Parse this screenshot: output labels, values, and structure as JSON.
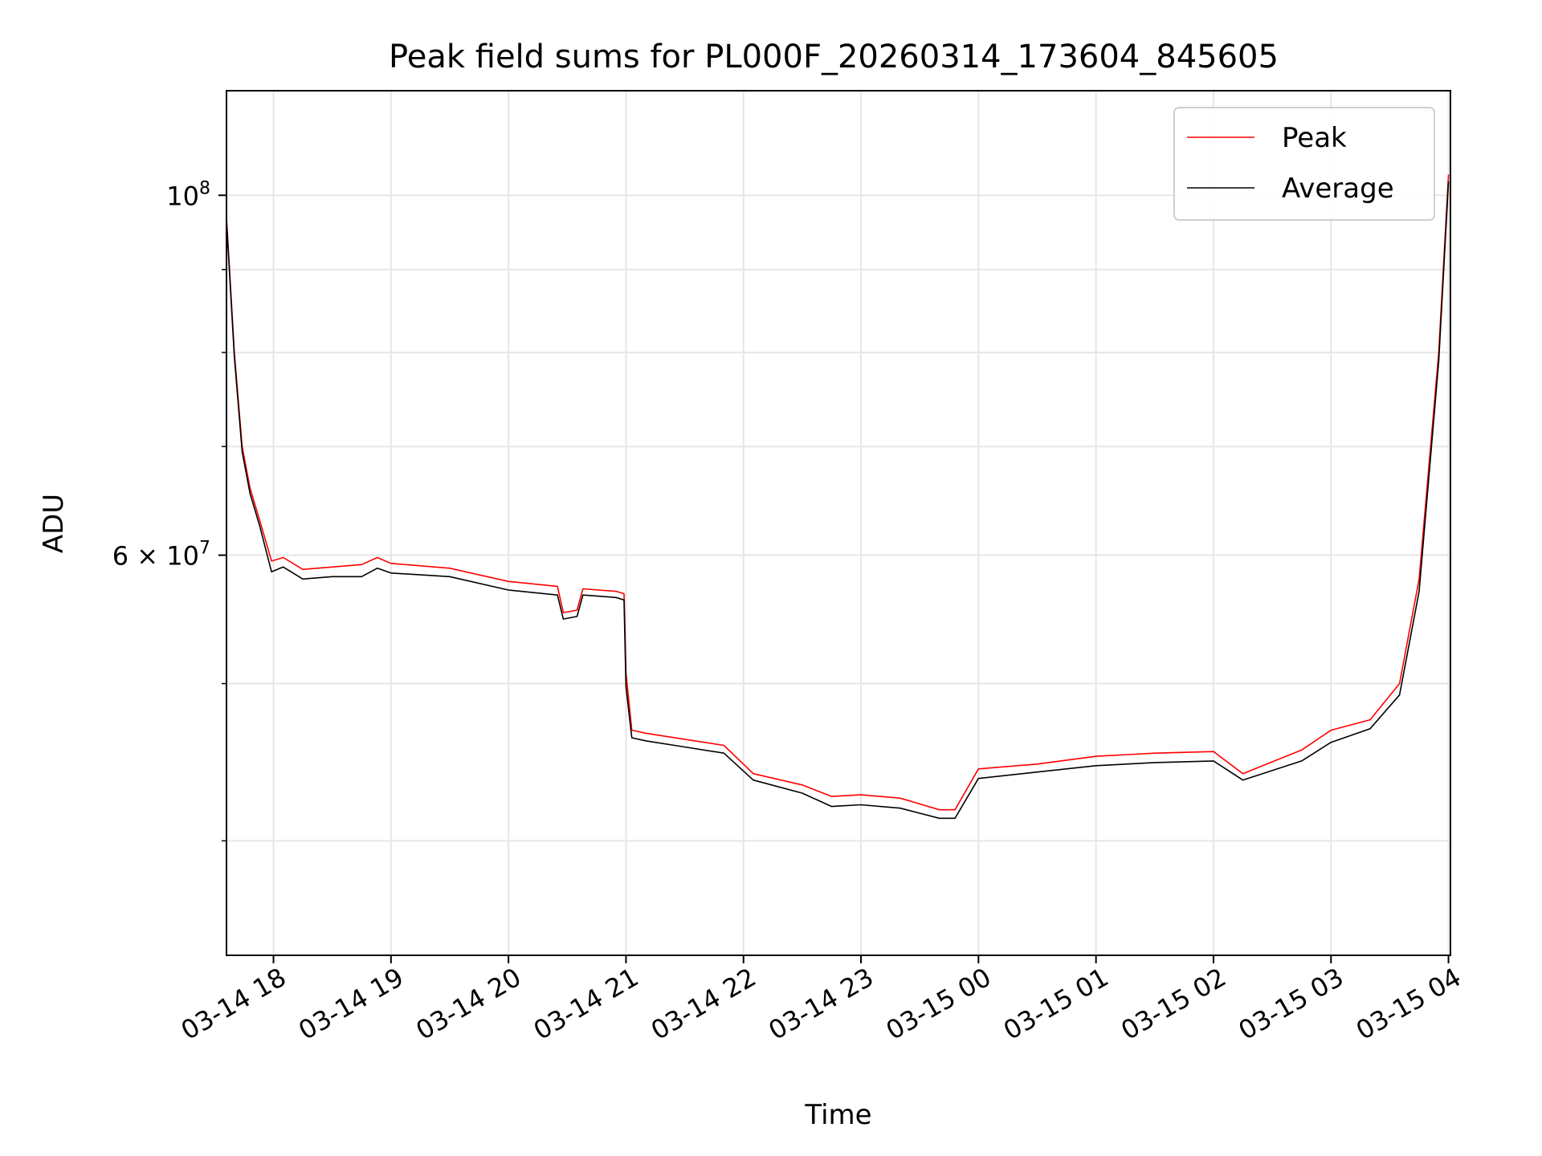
{
  "chart_data": {
    "type": "line",
    "title": "Peak field sums for PL000F_20260314_173604_845605",
    "xlabel": "Time",
    "ylabel": "ADU",
    "yscale": "log",
    "xlim": [
      "2026-03-14 17:36",
      "2026-03-15 04:01"
    ],
    "ylim": [
      34000000,
      116000000
    ],
    "x_ticks": [
      "2026-03-14 18:00",
      "2026-03-14 19:00",
      "2026-03-14 20:00",
      "2026-03-14 21:00",
      "2026-03-14 22:00",
      "2026-03-14 23:00",
      "2026-03-15 00:00",
      "2026-03-15 01:00",
      "2026-03-15 02:00",
      "2026-03-15 03:00",
      "2026-03-15 04:00"
    ],
    "x_tick_labels": [
      "03-14 18",
      "03-14 19",
      "03-14 20",
      "03-14 21",
      "03-14 22",
      "03-14 23",
      "03-15 00",
      "03-15 01",
      "03-15 02",
      "03-15 03",
      "03-15 04"
    ],
    "y_major_ticks": [
      {
        "value": 100000000,
        "mantissa": "",
        "base": "10",
        "exp": "8"
      },
      {
        "value": 60000000,
        "mantissa": "6",
        "base": "10",
        "exp": "7"
      }
    ],
    "y_minor_ticks": [
      40000000,
      50000000,
      70000000,
      80000000,
      90000000
    ],
    "grid": true,
    "legend_position": "top-right",
    "series": [
      {
        "name": "Peak",
        "color": "#ff0000",
        "points": [
          [
            "2026-03-14 17:36",
            97000000
          ],
          [
            "2026-03-14 17:40",
            80000000
          ],
          [
            "2026-03-14 17:44",
            70000000
          ],
          [
            "2026-03-14 17:48",
            66000000
          ],
          [
            "2026-03-14 17:53",
            63000000
          ],
          [
            "2026-03-14 17:59",
            59500000
          ],
          [
            "2026-03-14 18:05",
            59800000
          ],
          [
            "2026-03-14 18:15",
            58800000
          ],
          [
            "2026-03-14 18:30",
            59000000
          ],
          [
            "2026-03-14 18:45",
            59200000
          ],
          [
            "2026-03-14 18:53",
            59800000
          ],
          [
            "2026-03-14 19:00",
            59300000
          ],
          [
            "2026-03-14 19:30",
            58900000
          ],
          [
            "2026-03-14 20:00",
            57800000
          ],
          [
            "2026-03-14 20:25",
            57400000
          ],
          [
            "2026-03-14 20:28",
            55300000
          ],
          [
            "2026-03-14 20:35",
            55500000
          ],
          [
            "2026-03-14 20:38",
            57200000
          ],
          [
            "2026-03-14 20:55",
            57000000
          ],
          [
            "2026-03-14 20:59",
            56800000
          ],
          [
            "2026-03-14 21:00",
            50800000
          ],
          [
            "2026-03-14 21:03",
            46800000
          ],
          [
            "2026-03-14 21:10",
            46600000
          ],
          [
            "2026-03-14 21:30",
            46200000
          ],
          [
            "2026-03-14 21:50",
            45800000
          ],
          [
            "2026-03-14 22:05",
            44000000
          ],
          [
            "2026-03-14 22:30",
            43300000
          ],
          [
            "2026-03-14 22:45",
            42600000
          ],
          [
            "2026-03-14 23:00",
            42700000
          ],
          [
            "2026-03-14 23:20",
            42500000
          ],
          [
            "2026-03-14 23:40",
            41800000
          ],
          [
            "2026-03-14 23:48",
            41800000
          ],
          [
            "2026-03-15 00:00",
            44300000
          ],
          [
            "2026-03-15 00:30",
            44600000
          ],
          [
            "2026-03-15 01:00",
            45100000
          ],
          [
            "2026-03-15 01:30",
            45300000
          ],
          [
            "2026-03-15 02:00",
            45400000
          ],
          [
            "2026-03-15 02:15",
            44000000
          ],
          [
            "2026-03-15 02:45",
            45500000
          ],
          [
            "2026-03-15 03:00",
            46800000
          ],
          [
            "2026-03-15 03:20",
            47500000
          ],
          [
            "2026-03-15 03:35",
            50000000
          ],
          [
            "2026-03-15 03:45",
            58000000
          ],
          [
            "2026-03-15 03:55",
            80000000
          ],
          [
            "2026-03-15 04:00",
            103000000
          ]
        ]
      },
      {
        "name": "Average",
        "color": "#000000",
        "points": [
          [
            "2026-03-14 17:36",
            96500000
          ],
          [
            "2026-03-14 17:40",
            79500000
          ],
          [
            "2026-03-14 17:44",
            69500000
          ],
          [
            "2026-03-14 17:48",
            65500000
          ],
          [
            "2026-03-14 17:53",
            62500000
          ],
          [
            "2026-03-14 17:59",
            58600000
          ],
          [
            "2026-03-14 18:05",
            59000000
          ],
          [
            "2026-03-14 18:15",
            58000000
          ],
          [
            "2026-03-14 18:30",
            58200000
          ],
          [
            "2026-03-14 18:45",
            58200000
          ],
          [
            "2026-03-14 18:53",
            58900000
          ],
          [
            "2026-03-14 19:00",
            58500000
          ],
          [
            "2026-03-14 19:30",
            58200000
          ],
          [
            "2026-03-14 20:00",
            57100000
          ],
          [
            "2026-03-14 20:25",
            56700000
          ],
          [
            "2026-03-14 20:28",
            54800000
          ],
          [
            "2026-03-14 20:35",
            55000000
          ],
          [
            "2026-03-14 20:38",
            56700000
          ],
          [
            "2026-03-14 20:55",
            56500000
          ],
          [
            "2026-03-14 20:59",
            56300000
          ],
          [
            "2026-03-14 21:00",
            49800000
          ],
          [
            "2026-03-14 21:03",
            46300000
          ],
          [
            "2026-03-14 21:10",
            46100000
          ],
          [
            "2026-03-14 21:30",
            45700000
          ],
          [
            "2026-03-14 21:50",
            45300000
          ],
          [
            "2026-03-14 22:05",
            43600000
          ],
          [
            "2026-03-14 22:30",
            42800000
          ],
          [
            "2026-03-14 22:45",
            42000000
          ],
          [
            "2026-03-14 23:00",
            42100000
          ],
          [
            "2026-03-14 23:20",
            41900000
          ],
          [
            "2026-03-14 23:40",
            41300000
          ],
          [
            "2026-03-14 23:48",
            41300000
          ],
          [
            "2026-03-15 00:00",
            43700000
          ],
          [
            "2026-03-15 00:30",
            44100000
          ],
          [
            "2026-03-15 01:00",
            44500000
          ],
          [
            "2026-03-15 01:30",
            44700000
          ],
          [
            "2026-03-15 02:00",
            44800000
          ],
          [
            "2026-03-15 02:15",
            43600000
          ],
          [
            "2026-03-15 02:45",
            44800000
          ],
          [
            "2026-03-15 03:00",
            46000000
          ],
          [
            "2026-03-15 03:20",
            46900000
          ],
          [
            "2026-03-15 03:35",
            49200000
          ],
          [
            "2026-03-15 03:45",
            57000000
          ],
          [
            "2026-03-15 03:55",
            79000000
          ],
          [
            "2026-03-15 04:00",
            102000000
          ]
        ]
      }
    ]
  }
}
